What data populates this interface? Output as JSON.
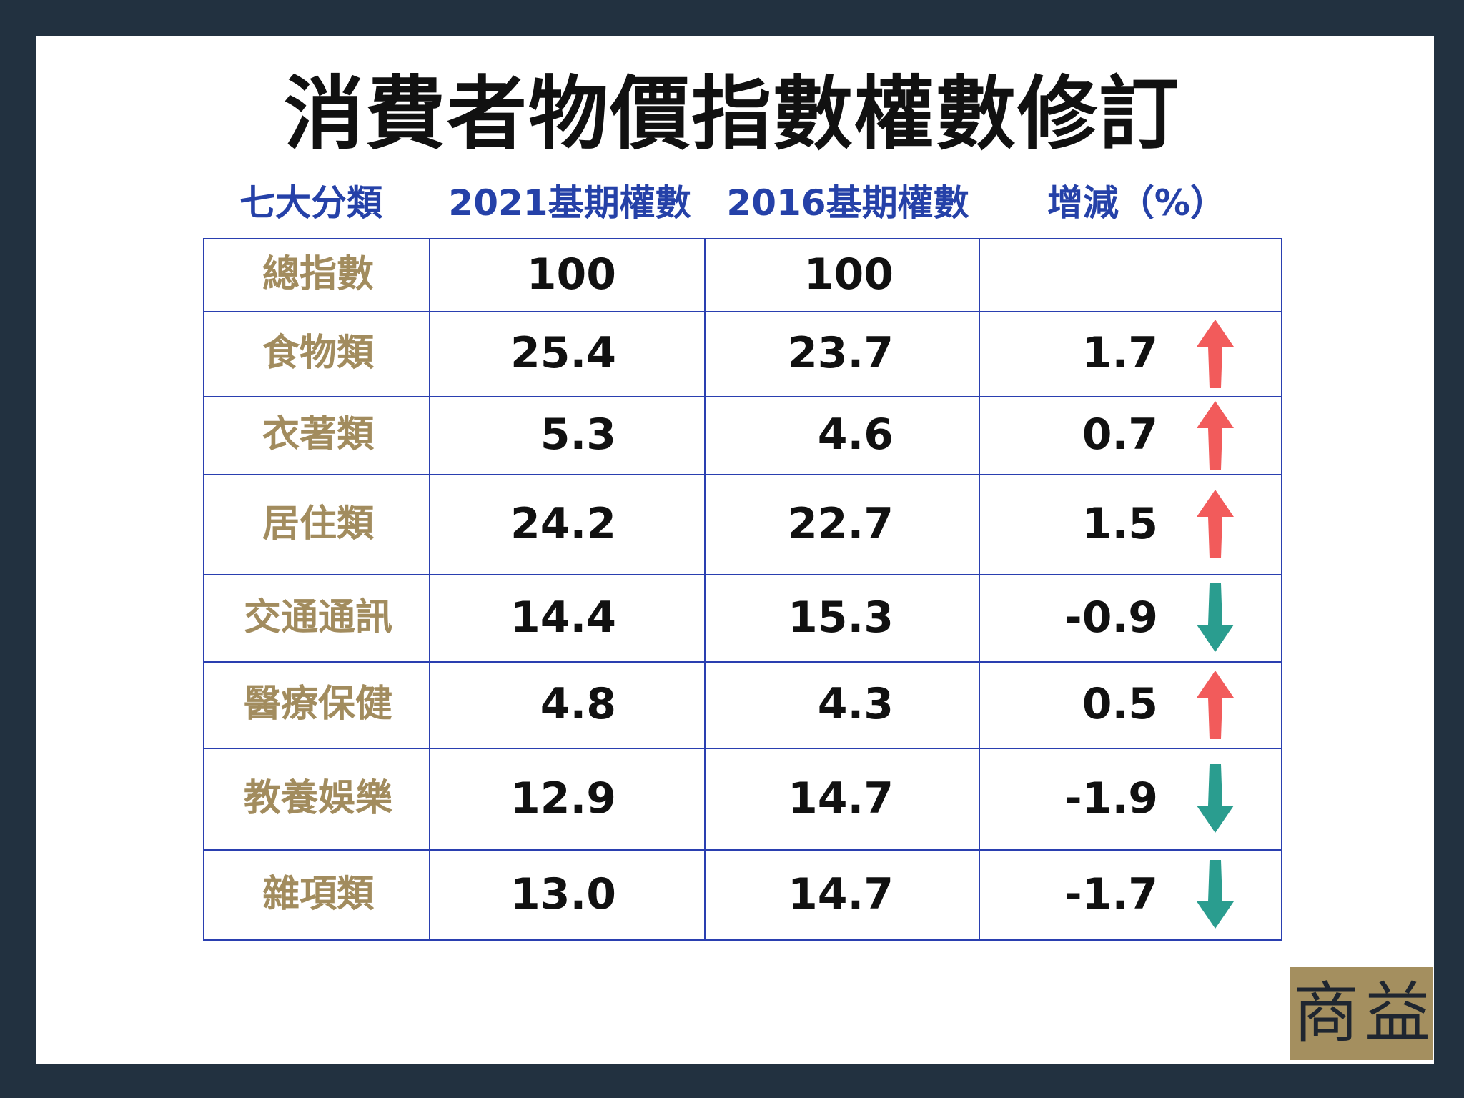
{
  "title": "消費者物價指數權數修訂",
  "headers": [
    "七大分類",
    "2021基期權數",
    "2016基期權數",
    "增減（%）"
  ],
  "colors": {
    "header": "#2541a8",
    "category": "#a28c5e",
    "up": "#f25b5b",
    "down": "#2a9d8f",
    "grid": "#2a3fb0"
  },
  "logo": "商益",
  "chart_data": {
    "type": "table",
    "title": "消費者物價指數權數修訂",
    "columns": [
      "七大分類",
      "2021基期權數",
      "2016基期權數",
      "增減（%）"
    ],
    "rows": [
      {
        "category": "總指數",
        "w2021": "100",
        "w2016": "100",
        "change": "",
        "direction": "none"
      },
      {
        "category": "食物類",
        "w2021": "25.4",
        "w2016": "23.7",
        "change": "1.7",
        "direction": "up"
      },
      {
        "category": "衣著類",
        "w2021": "5.3",
        "w2016": "4.6",
        "change": "0.7",
        "direction": "up"
      },
      {
        "category": "居住類",
        "w2021": "24.2",
        "w2016": "22.7",
        "change": "1.5",
        "direction": "up"
      },
      {
        "category": "交通通訊",
        "w2021": "14.4",
        "w2016": "15.3",
        "change": "-0.9",
        "direction": "down"
      },
      {
        "category": "醫療保健",
        "w2021": "4.8",
        "w2016": "4.3",
        "change": "0.5",
        "direction": "up"
      },
      {
        "category": "教養娛樂",
        "w2021": "12.9",
        "w2016": "14.7",
        "change": "-1.9",
        "direction": "down"
      },
      {
        "category": "雜項類",
        "w2021": "13.0",
        "w2016": "14.7",
        "change": "-1.7",
        "direction": "down"
      }
    ]
  }
}
